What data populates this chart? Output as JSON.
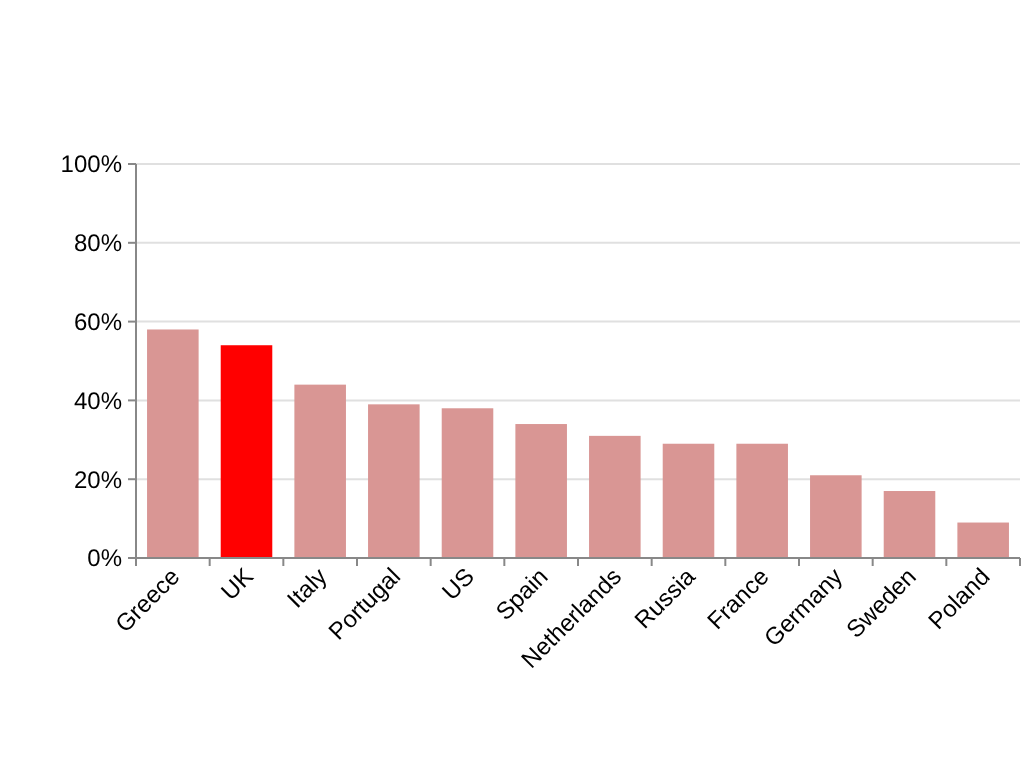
{
  "chart_data": {
    "type": "bar",
    "categories": [
      "Greece",
      "UK",
      "Italy",
      "Portugal",
      "US",
      "Spain",
      "Netherlands",
      "Russia",
      "France",
      "Germany",
      "Sweden",
      "Poland"
    ],
    "values": [
      58,
      54,
      44,
      39,
      38,
      34,
      31,
      29,
      29,
      21,
      17,
      9
    ],
    "colors": [
      "#d99694",
      "#ff0000",
      "#d99694",
      "#d99694",
      "#d99694",
      "#d99694",
      "#d99694",
      "#d99694",
      "#d99694",
      "#d99694",
      "#d99694",
      "#d99694"
    ],
    "ylim": [
      0,
      100
    ],
    "yticks": [
      {
        "value": 0,
        "label": "0%"
      },
      {
        "value": 20,
        "label": "20%"
      },
      {
        "value": 40,
        "label": "40%"
      },
      {
        "value": 60,
        "label": "60%"
      },
      {
        "value": 80,
        "label": "80%"
      },
      {
        "value": 100,
        "label": "100%"
      }
    ],
    "grid": "y"
  }
}
